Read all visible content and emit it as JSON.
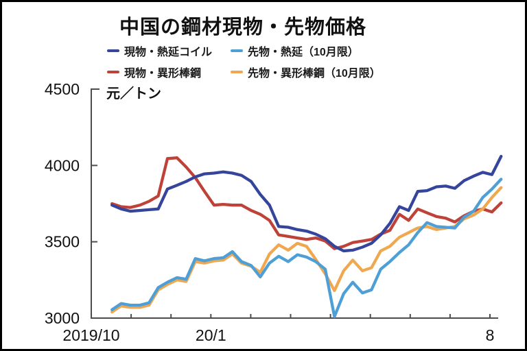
{
  "page": {
    "title": "中国の鋼材現物・先物価格",
    "unit_label": "元／トン"
  },
  "legend": {
    "items": [
      {
        "id": "spot-hrc",
        "label": "現物・熱延コイル",
        "color": "#35459B"
      },
      {
        "id": "fut-hrc",
        "label": "先物・熱延（10月限）",
        "color": "#4D9FD6"
      },
      {
        "id": "spot-rebar",
        "label": "現物・異形棒鋼",
        "color": "#BF4238"
      },
      {
        "id": "fut-rebar",
        "label": "先物・異形棒鋼（10月限）",
        "color": "#EFA850"
      }
    ]
  },
  "chart_data": {
    "type": "line",
    "title": "中国の鋼材現物・先物価格",
    "ylabel": "元／トン",
    "ylim": [
      3000,
      4500
    ],
    "yticks": [
      4500,
      4000,
      3500,
      3000
    ],
    "grid": false,
    "legend_position": "top",
    "x_unit": "months-after-2019/10 (weekly points, 2019/10 - 2020/8)",
    "xtick_months": [
      0,
      1,
      2,
      3,
      4,
      5,
      6,
      7,
      8,
      9,
      10
    ],
    "xtick_labels": [
      {
        "m": 0,
        "text": "2019/10"
      },
      {
        "m": 3,
        "text": "20/1"
      },
      {
        "m": 10,
        "text": "8"
      }
    ],
    "x": [
      0.52,
      0.75,
      0.98,
      1.22,
      1.45,
      1.68,
      1.91,
      2.15,
      2.38,
      2.61,
      2.84,
      3.08,
      3.31,
      3.54,
      3.77,
      4.01,
      4.24,
      4.47,
      4.7,
      4.94,
      5.17,
      5.4,
      5.63,
      5.87,
      6.1,
      6.33,
      6.56,
      6.8,
      7.03,
      7.26,
      7.49,
      7.73,
      7.96,
      8.19,
      8.42,
      8.66,
      8.89,
      9.12,
      9.35,
      9.59,
      9.82,
      10.05,
      10.28
    ],
    "series": [
      {
        "id": "spot-hrc",
        "name": "現物・熱延コイル",
        "color": "#35459B",
        "values": [
          3740,
          3715,
          3700,
          3705,
          3710,
          3715,
          3845,
          3870,
          3895,
          3925,
          3945,
          3950,
          3958,
          3950,
          3935,
          3895,
          3810,
          3740,
          3600,
          3595,
          3580,
          3570,
          3550,
          3520,
          3470,
          3440,
          3445,
          3465,
          3490,
          3545,
          3620,
          3730,
          3705,
          3830,
          3835,
          3860,
          3865,
          3850,
          3900,
          3930,
          3955,
          3940,
          4060
        ]
      },
      {
        "id": "spot-rebar",
        "name": "現物・異形棒鋼",
        "color": "#BF4238",
        "values": [
          3750,
          3730,
          3725,
          3740,
          3765,
          3800,
          4045,
          4050,
          3990,
          3920,
          3830,
          3740,
          3745,
          3740,
          3740,
          3705,
          3680,
          3640,
          3545,
          3535,
          3525,
          3515,
          3525,
          3505,
          3455,
          3470,
          3495,
          3505,
          3515,
          3550,
          3575,
          3680,
          3640,
          3715,
          3690,
          3665,
          3655,
          3630,
          3670,
          3700,
          3715,
          3695,
          3755
        ]
      },
      {
        "id": "fut-hrc",
        "name": "先物・熱延（10月限）",
        "color": "#4D9FD6",
        "values": [
          3055,
          3095,
          3085,
          3085,
          3100,
          3200,
          3235,
          3265,
          3255,
          3390,
          3375,
          3390,
          3395,
          3435,
          3370,
          3345,
          3270,
          3360,
          3405,
          3370,
          3415,
          3400,
          3370,
          3320,
          3010,
          3160,
          3235,
          3165,
          3185,
          3320,
          3370,
          3430,
          3480,
          3560,
          3625,
          3600,
          3595,
          3590,
          3660,
          3700,
          3790,
          3845,
          3910
        ]
      },
      {
        "id": "fut-rebar",
        "name": "先物・異形棒鋼（10月限）",
        "color": "#EFA850",
        "values": [
          3040,
          3080,
          3070,
          3070,
          3085,
          3185,
          3220,
          3250,
          3240,
          3370,
          3360,
          3375,
          3380,
          3420,
          3360,
          3340,
          3300,
          3420,
          3480,
          3445,
          3490,
          3470,
          3385,
          3290,
          3180,
          3310,
          3380,
          3310,
          3330,
          3440,
          3470,
          3530,
          3560,
          3590,
          3600,
          3580,
          3590,
          3600,
          3650,
          3675,
          3715,
          3790,
          3855
        ]
      }
    ]
  }
}
